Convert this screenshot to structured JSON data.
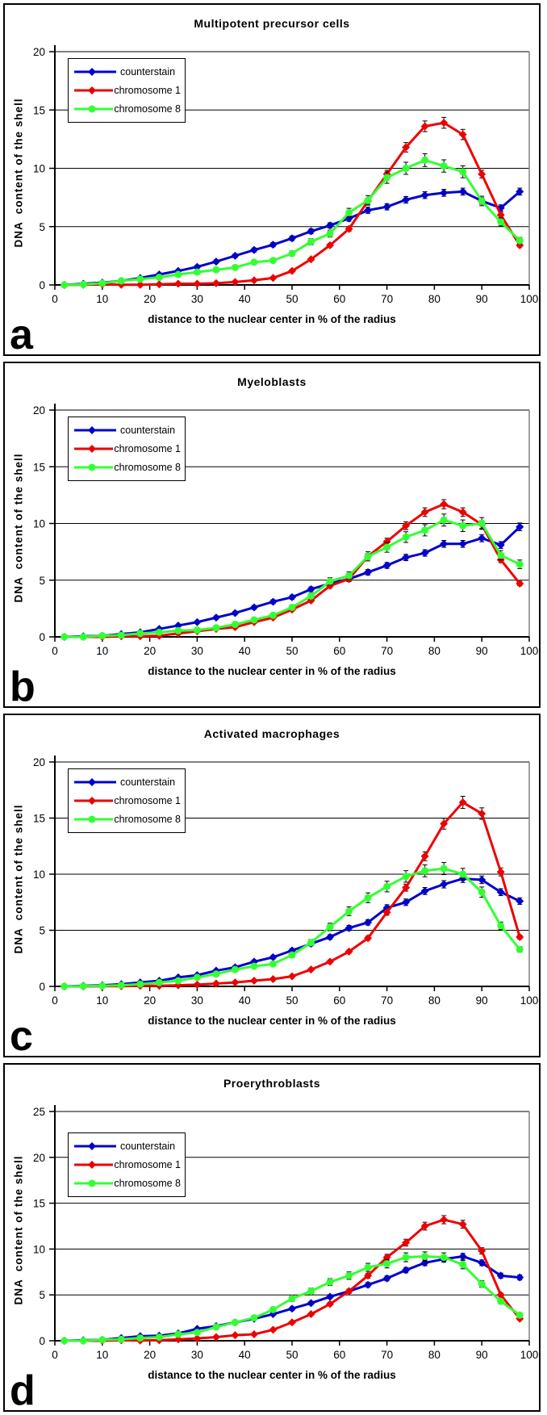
{
  "figure": {
    "panel_count": 4,
    "accent_colors": {
      "counterstain": "#0000CC",
      "chromosome_1": "#EE0000",
      "chromosome_8": "#33FF33"
    }
  },
  "chart_data": [
    {
      "type": "line",
      "letter": "a",
      "title": "Multipotent precursor cells",
      "xlabel": "distance to the nuclear center in % of the radius",
      "ylabel": "DNA  content of the shell",
      "ylim": [
        0,
        20
      ],
      "yticks": [
        0,
        5,
        10,
        15,
        20
      ],
      "xticks": [
        0,
        10,
        20,
        30,
        40,
        50,
        60,
        70,
        80,
        90,
        100
      ],
      "grid": true,
      "legend_position": "upper-left",
      "x": [
        2,
        6,
        10,
        14,
        18,
        22,
        26,
        30,
        34,
        38,
        42,
        46,
        50,
        54,
        58,
        62,
        66,
        70,
        74,
        78,
        82,
        86,
        90,
        94,
        98
      ],
      "series": [
        {
          "name": "counterstain",
          "color": "#0000CC",
          "marker": "diamond",
          "values": [
            0,
            0.1,
            0.2,
            0.35,
            0.6,
            0.9,
            1.2,
            1.55,
            2.0,
            2.5,
            3.0,
            3.45,
            4.0,
            4.6,
            5.1,
            5.7,
            6.4,
            6.7,
            7.3,
            7.7,
            7.9,
            8.0,
            7.2,
            6.6,
            8.0
          ],
          "err": {
            "base": 0.1,
            "slope": 0.025,
            "max": 0.5,
            "min_v": 1.5
          }
        },
        {
          "name": "chromosome 1",
          "color": "#EE0000",
          "marker": "diamond",
          "values": [
            0,
            0.02,
            0.05,
            0.02,
            0.02,
            0.05,
            0.1,
            0.1,
            0.15,
            0.25,
            0.4,
            0.6,
            1.2,
            2.2,
            3.4,
            4.8,
            7.2,
            9.5,
            11.8,
            13.6,
            13.9,
            12.9,
            9.5,
            6.0,
            3.4
          ],
          "err": {
            "base": 0.05,
            "slope": 0.03,
            "max": 0.55,
            "min_v": 2.0
          }
        },
        {
          "name": "chromosome 8",
          "color": "#33FF33",
          "marker": "circle",
          "values": [
            0,
            0.05,
            0.15,
            0.35,
            0.5,
            0.65,
            0.9,
            1.1,
            1.3,
            1.5,
            1.95,
            2.1,
            2.7,
            3.7,
            4.4,
            6.2,
            7.25,
            9.2,
            10.0,
            10.7,
            10.2,
            9.7,
            7.2,
            5.4,
            3.8
          ],
          "err": {
            "base": 0.12,
            "slope": 0.04,
            "max": 0.7,
            "min_v": 1.0
          }
        }
      ]
    },
    {
      "type": "line",
      "letter": "b",
      "title": "Myeloblasts",
      "xlabel": "distance to the nuclear center in % of the radius",
      "ylabel": "DNA  content of the shell",
      "ylim": [
        0,
        20
      ],
      "yticks": [
        0,
        5,
        10,
        15,
        20
      ],
      "xticks": [
        0,
        10,
        20,
        30,
        40,
        50,
        60,
        70,
        80,
        90,
        100
      ],
      "grid": true,
      "legend_position": "upper-left",
      "x": [
        2,
        6,
        10,
        14,
        18,
        22,
        26,
        30,
        34,
        38,
        42,
        46,
        50,
        54,
        58,
        62,
        66,
        70,
        74,
        78,
        82,
        86,
        90,
        94,
        98
      ],
      "series": [
        {
          "name": "counterstain",
          "color": "#0000CC",
          "marker": "diamond",
          "values": [
            0,
            0.05,
            0.1,
            0.25,
            0.4,
            0.7,
            1.0,
            1.3,
            1.7,
            2.1,
            2.6,
            3.1,
            3.5,
            4.2,
            4.7,
            5.1,
            5.7,
            6.3,
            7.0,
            7.4,
            8.2,
            8.2,
            8.7,
            8.1,
            9.7
          ],
          "err": {
            "base": 0.1,
            "slope": 0.025,
            "max": 0.5,
            "min_v": 1.5
          }
        },
        {
          "name": "chromosome 1",
          "color": "#EE0000",
          "marker": "diamond",
          "values": [
            0,
            0,
            0,
            0.05,
            0.05,
            0.1,
            0.3,
            0.5,
            0.7,
            0.85,
            1.3,
            1.7,
            2.4,
            3.2,
            4.5,
            5.1,
            7.1,
            8.4,
            9.8,
            11.0,
            11.7,
            11.0,
            9.9,
            6.8,
            4.7
          ],
          "err": {
            "base": 0.05,
            "slope": 0.03,
            "max": 0.55,
            "min_v": 2.0
          }
        },
        {
          "name": "chromosome 8",
          "color": "#33FF33",
          "marker": "circle",
          "values": [
            0,
            0,
            0.1,
            0.15,
            0.3,
            0.4,
            0.55,
            0.6,
            0.8,
            1.1,
            1.5,
            1.9,
            2.6,
            3.6,
            4.9,
            5.4,
            7.1,
            7.9,
            8.8,
            9.4,
            10.3,
            9.8,
            10.0,
            7.2,
            6.4
          ],
          "err": {
            "base": 0.12,
            "slope": 0.04,
            "max": 0.7,
            "min_v": 1.0
          }
        }
      ]
    },
    {
      "type": "line",
      "letter": "c",
      "title": "Activated macrophages",
      "xlabel": "distance to the nuclear center in % of the radius",
      "ylabel": "DNA  content of the shell",
      "ylim": [
        0,
        20
      ],
      "yticks": [
        0,
        5,
        10,
        15,
        20
      ],
      "xticks": [
        0,
        10,
        20,
        30,
        40,
        50,
        60,
        70,
        80,
        90,
        100
      ],
      "grid": true,
      "legend_position": "upper-left",
      "x": [
        2,
        6,
        10,
        14,
        18,
        22,
        26,
        30,
        34,
        38,
        42,
        46,
        50,
        54,
        58,
        62,
        66,
        70,
        74,
        78,
        82,
        86,
        90,
        94,
        98
      ],
      "series": [
        {
          "name": "counterstain",
          "color": "#0000CC",
          "marker": "diamond",
          "values": [
            0,
            0.05,
            0.1,
            0.2,
            0.35,
            0.5,
            0.8,
            1.0,
            1.4,
            1.7,
            2.2,
            2.6,
            3.2,
            3.8,
            4.4,
            5.2,
            5.7,
            7.0,
            7.5,
            8.5,
            9.1,
            9.6,
            9.5,
            8.4,
            7.6
          ],
          "err": {
            "base": 0.1,
            "slope": 0.025,
            "max": 0.5,
            "min_v": 1.5
          }
        },
        {
          "name": "chromosome 1",
          "color": "#EE0000",
          "marker": "diamond",
          "values": [
            0,
            0,
            0.02,
            0.02,
            0.05,
            0.05,
            0.1,
            0.15,
            0.25,
            0.35,
            0.5,
            0.65,
            0.9,
            1.5,
            2.2,
            3.1,
            4.3,
            6.6,
            8.8,
            11.6,
            14.5,
            16.4,
            15.4,
            10.2,
            4.4
          ],
          "err": {
            "base": 0.05,
            "slope": 0.03,
            "max": 0.55,
            "min_v": 2.0
          }
        },
        {
          "name": "chromosome 8",
          "color": "#33FF33",
          "marker": "circle",
          "values": [
            0,
            0.02,
            0.05,
            0.1,
            0.2,
            0.35,
            0.5,
            0.8,
            1.1,
            1.5,
            1.8,
            2.0,
            2.8,
            3.9,
            5.3,
            6.7,
            7.9,
            8.9,
            9.8,
            10.3,
            10.5,
            10.0,
            8.4,
            5.4,
            3.3
          ],
          "err": {
            "base": 0.12,
            "slope": 0.04,
            "max": 0.7,
            "min_v": 1.0
          }
        }
      ]
    },
    {
      "type": "line",
      "letter": "d",
      "title": "Proerythroblasts",
      "xlabel": "distance to the nuclear center in % of the radius",
      "ylabel": "DNA  content of the shell",
      "ylim": [
        0,
        25
      ],
      "yticks": [
        0,
        5,
        10,
        15,
        20,
        25
      ],
      "xticks": [
        0,
        10,
        20,
        30,
        40,
        50,
        60,
        70,
        80,
        90,
        100
      ],
      "grid": true,
      "legend_position": "upper-left",
      "x": [
        2,
        6,
        10,
        14,
        18,
        22,
        26,
        30,
        34,
        38,
        42,
        46,
        50,
        54,
        58,
        62,
        66,
        70,
        74,
        78,
        82,
        86,
        90,
        94,
        98
      ],
      "series": [
        {
          "name": "counterstain",
          "color": "#0000CC",
          "marker": "diamond",
          "values": [
            0,
            0.05,
            0.1,
            0.3,
            0.5,
            0.55,
            0.8,
            1.3,
            1.6,
            2.0,
            2.4,
            2.9,
            3.5,
            4.1,
            4.8,
            5.4,
            6.1,
            6.8,
            7.7,
            8.5,
            8.9,
            9.2,
            8.5,
            7.1,
            6.9
          ],
          "err": {
            "base": 0.1,
            "slope": 0.025,
            "max": 0.5,
            "min_v": 1.5
          }
        },
        {
          "name": "chromosome 1",
          "color": "#EE0000",
          "marker": "diamond",
          "values": [
            0,
            0,
            0,
            0.05,
            0.02,
            0.05,
            0.15,
            0.25,
            0.4,
            0.6,
            0.7,
            1.2,
            2.0,
            2.9,
            4.0,
            5.4,
            7.1,
            9.1,
            10.7,
            12.5,
            13.2,
            12.7,
            9.8,
            5.0,
            2.4
          ],
          "err": {
            "base": 0.05,
            "slope": 0.03,
            "max": 0.55,
            "min_v": 2.0
          }
        },
        {
          "name": "chromosome 8",
          "color": "#33FF33",
          "marker": "circle",
          "values": [
            0,
            0,
            0.1,
            0.15,
            0.3,
            0.4,
            0.7,
            0.9,
            1.5,
            2.0,
            2.5,
            3.4,
            4.6,
            5.4,
            6.4,
            7.1,
            8.0,
            8.4,
            9.1,
            9.2,
            9.1,
            8.3,
            6.2,
            4.3,
            2.8
          ],
          "err": {
            "base": 0.12,
            "slope": 0.04,
            "max": 0.7,
            "min_v": 1.0
          }
        }
      ]
    }
  ]
}
